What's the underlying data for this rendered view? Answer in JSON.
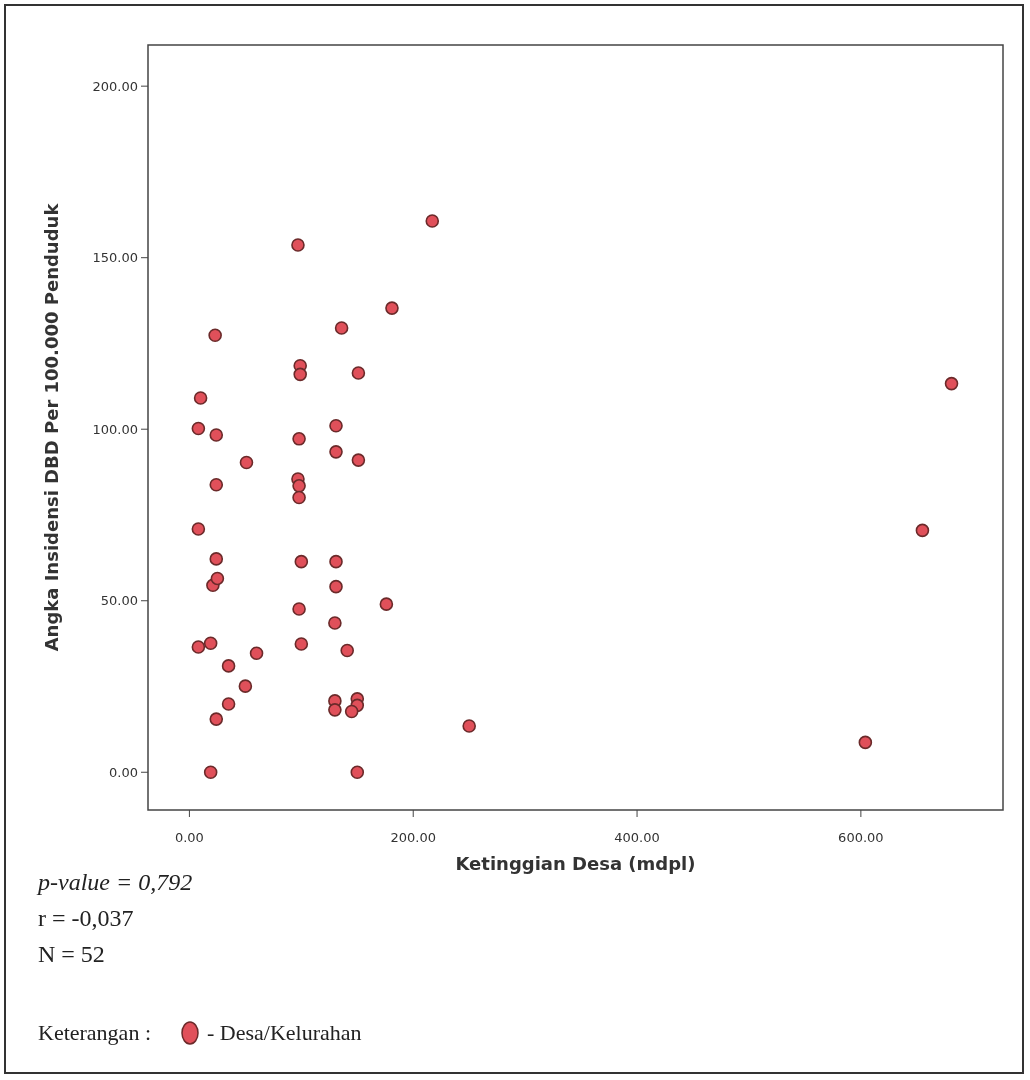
{
  "chart_data": {
    "type": "scatter",
    "xlabel": "Ketinggian Desa (mdpl)",
    "ylabel": "Angka Insidensi DBD Per 100.000 Penduduk",
    "xlim": [
      -37,
      727
    ],
    "ylim": [
      -11,
      212
    ],
    "xticks": [
      {
        "value": 0,
        "label": "0.00"
      },
      {
        "value": 200,
        "label": "200.00"
      },
      {
        "value": 400,
        "label": "400.00"
      },
      {
        "value": 600,
        "label": "600.00"
      }
    ],
    "yticks": [
      {
        "value": 0,
        "label": "0.00"
      },
      {
        "value": 50,
        "label": "50.00"
      },
      {
        "value": 100,
        "label": "100.00"
      },
      {
        "value": 150,
        "label": "150.00"
      },
      {
        "value": 200,
        "label": "200.00"
      }
    ],
    "grid": false,
    "marker": "circle",
    "legend": "bottom left",
    "legend_title": "Keterangan :",
    "annotations": [
      "p-value = 0,792",
      "r = -0,037",
      "N = 52"
    ],
    "series": [
      {
        "name": "- Desa/Kelurahan",
        "color": "#e0505a",
        "x": [
          217,
          97,
          181,
          136,
          23,
          99,
          99,
          151,
          10,
          8,
          24,
          98,
          131,
          131,
          151,
          51,
          24,
          97,
          98,
          98,
          8,
          24,
          100,
          131,
          21,
          25,
          131,
          176,
          98,
          130,
          8,
          19,
          100,
          60,
          141,
          35,
          50,
          35,
          130,
          130,
          150,
          150,
          145,
          24,
          250,
          19,
          150,
          681,
          655,
          604
        ],
        "values": [
          160.7,
          153.7,
          135.3,
          129.5,
          127.4,
          118.5,
          116,
          116.4,
          109.1,
          100.2,
          98.3,
          97.2,
          101,
          93.4,
          91,
          90.3,
          83.8,
          85.5,
          83.5,
          80.1,
          70.9,
          62.2,
          61.4,
          61.4,
          54.5,
          56.5,
          54.1,
          49,
          47.6,
          43.5,
          36.5,
          37.6,
          37.4,
          34.7,
          35.5,
          31,
          25.1,
          19.9,
          20.8,
          18.2,
          21.4,
          19.5,
          17.7,
          15.5,
          13.5,
          0,
          0,
          113.3,
          70.5,
          8.7
        ]
      }
    ]
  }
}
